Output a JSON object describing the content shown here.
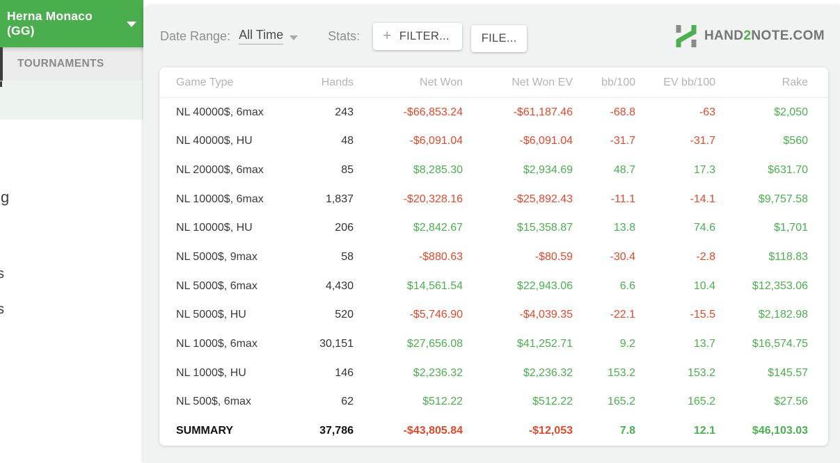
{
  "sidebar": {
    "room_title": "Herna Monaco (GG)",
    "tab_label": "TOURNAMENTS",
    "fragments": {
      "f1": "g",
      "f2": "s",
      "f3": "s"
    }
  },
  "toolbar": {
    "date_range_label": "Date Range:",
    "date_range_value": "All Time",
    "stats_label": "Stats:",
    "filter_button": "FILTER...",
    "file_button": "FILE...",
    "plus_icon": "+"
  },
  "logo": {
    "part1": "HAND",
    "part2": "2",
    "part3": "NOTE.COM"
  },
  "colors": {
    "header_green": "#4aad4e",
    "positive_green": "#4caf50",
    "negative_red": "#e2492c",
    "selected_row_bg": "#edf4ed"
  },
  "table": {
    "columns": [
      "Game Type",
      "Hands",
      "Net Won",
      "Net Won  EV",
      "bb/100",
      "EV bb/100",
      "Rake"
    ],
    "rows": [
      [
        "NL 40000$, 6max",
        "243",
        "-$66,853.24",
        "-$61,187.46",
        "-68.8",
        "-63",
        "$2,050"
      ],
      [
        "NL 40000$, HU",
        "48",
        "-$6,091.04",
        "-$6,091.04",
        "-31.7",
        "-31.7",
        "$560"
      ],
      [
        "NL 20000$, 6max",
        "85",
        "$8,285.30",
        "$2,934.69",
        "48.7",
        "17.3",
        "$631.70"
      ],
      [
        "NL 10000$, 6max",
        "1,837",
        "-$20,328.16",
        "-$25,892.43",
        "-11.1",
        "-14.1",
        "$9,757.58"
      ],
      [
        "NL 10000$, HU",
        "206",
        "$2,842.67",
        "$15,358.87",
        "13.8",
        "74.6",
        "$1,701"
      ],
      [
        "NL 5000$, 9max",
        "58",
        "-$880.63",
        "-$80.59",
        "-30.4",
        "-2.8",
        "$118.83"
      ],
      [
        "NL 5000$, 6max",
        "4,430",
        "$14,561.54",
        "$22,943.06",
        "6.6",
        "10.4",
        "$12,353.06"
      ],
      [
        "NL 5000$, HU",
        "520",
        "-$5,746.90",
        "-$4,039.35",
        "-22.1",
        "-15.5",
        "$2,182.98"
      ],
      [
        "NL 1000$, 6max",
        "30,151",
        "$27,656.08",
        "$41,252.71",
        "9.2",
        "13.7",
        "$16,574.75"
      ],
      [
        "NL 1000$, HU",
        "146",
        "$2,236.32",
        "$2,236.32",
        "153.2",
        "153.2",
        "$145.57"
      ],
      [
        "NL 500$, 6max",
        "62",
        "$512.22",
        "$512.22",
        "165.2",
        "165.2",
        "$27.56"
      ]
    ],
    "summary": [
      "SUMMARY",
      "37,786",
      "-$43,805.84",
      "-$12,053",
      "7.8",
      "12.1",
      "$46,103.03"
    ]
  }
}
